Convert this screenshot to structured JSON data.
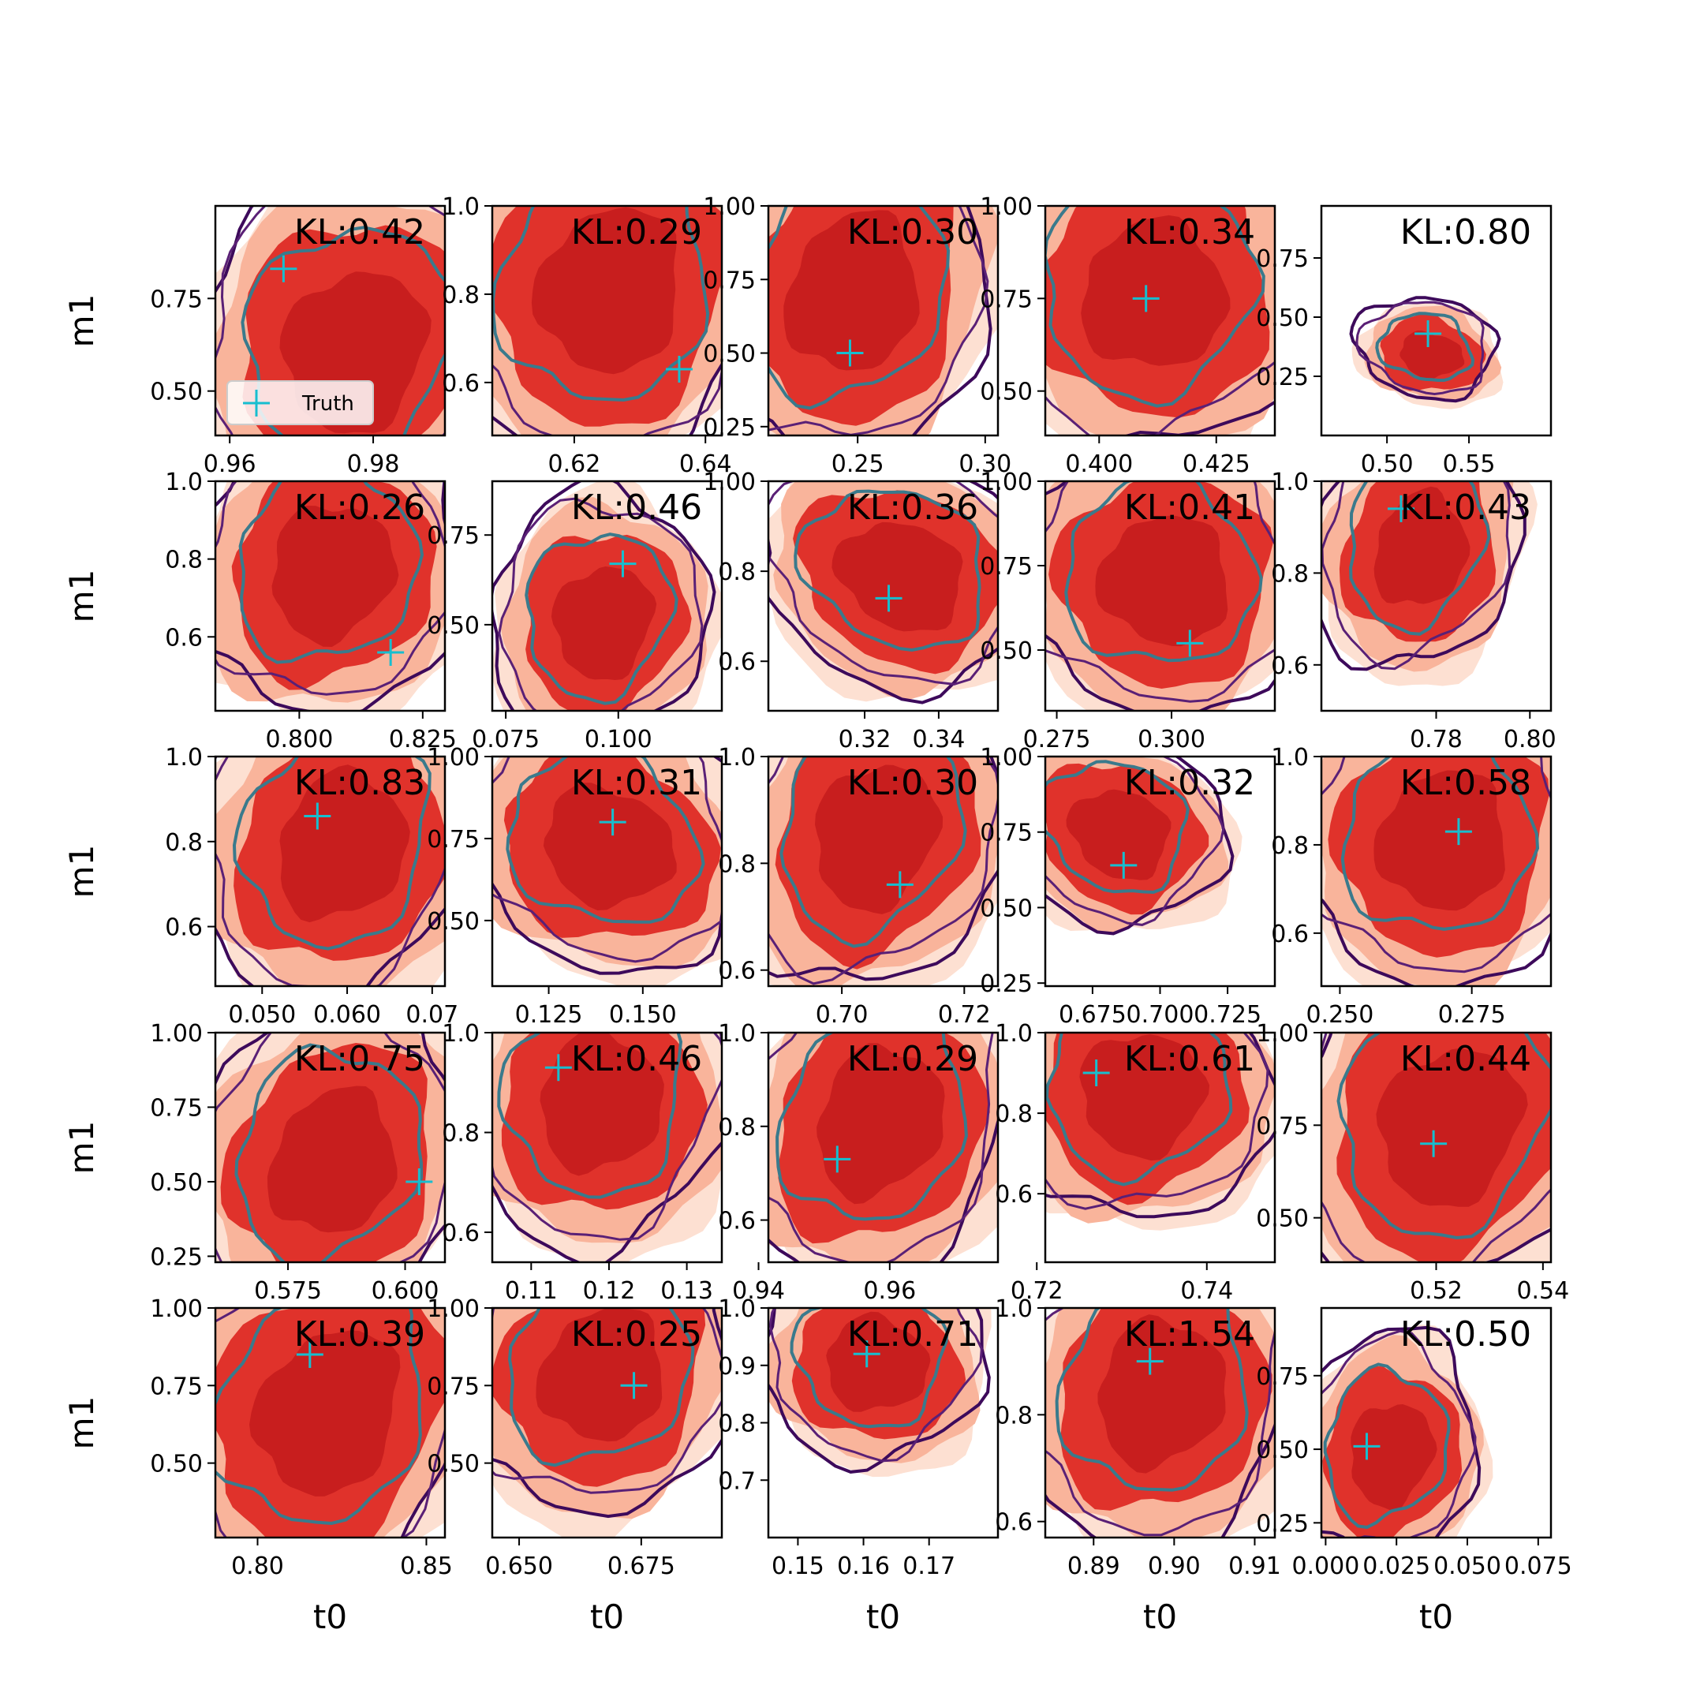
{
  "chart_data": {
    "type": "grid-of-2d-posterior-contour-plots",
    "rows": 5,
    "cols": 5,
    "xlabel": "t0",
    "ylabel": "m1",
    "legend": {
      "entry": "Truth",
      "marker": "+",
      "color": "#17becf",
      "placement": "lower-left of first panel"
    },
    "colors": {
      "contour_fill": [
        "#fde0d2",
        "#f9b49b",
        "#e0322b",
        "#c81e1e"
      ],
      "contour_lines": [
        "#3d0a5b",
        "#5a2076",
        "#3a7a8c"
      ],
      "truth_marker": "#17becf"
    },
    "panels": [
      {
        "kl": "KL:0.42",
        "xlim": [
          0.958,
          0.99
        ],
        "ylim": [
          0.38,
          1.0
        ],
        "xticks": [
          [
            0.96,
            "0.96"
          ],
          [
            0.98,
            "0.98"
          ]
        ],
        "yticks": [
          [
            0.5,
            "0.50"
          ],
          [
            0.75,
            "0.75"
          ]
        ],
        "truth": [
          0.9675,
          0.83
        ],
        "center": [
          0.977,
          0.62
        ],
        "scale": [
          0.02,
          0.35
        ],
        "rot": -35
      },
      {
        "kl": "KL:0.29",
        "xlim": [
          0.6075,
          0.6425
        ],
        "ylim": [
          0.48,
          1.0
        ],
        "xticks": [
          [
            0.62,
            "0.62"
          ],
          [
            0.64,
            "0.64"
          ]
        ],
        "yticks": [
          [
            0.6,
            "0.6"
          ],
          [
            0.8,
            "0.8"
          ],
          [
            1.0,
            "1.0"
          ]
        ],
        "truth": [
          0.636,
          0.63
        ],
        "center": [
          0.625,
          0.82
        ],
        "scale": [
          0.02,
          0.33
        ],
        "rot": -38
      },
      {
        "kl": "KL:0.30",
        "xlim": [
          0.215,
          0.305
        ],
        "ylim": [
          0.22,
          1.0
        ],
        "xticks": [
          [
            0.25,
            "0.25"
          ],
          [
            0.3,
            "0.30"
          ]
        ],
        "yticks": [
          [
            0.25,
            "0.25"
          ],
          [
            0.5,
            "0.50"
          ],
          [
            0.75,
            "0.75"
          ],
          [
            1.0,
            "1.00"
          ]
        ],
        "truth": [
          0.247,
          0.5
        ],
        "center": [
          0.247,
          0.72
        ],
        "scale": [
          0.05,
          0.45
        ],
        "rot": -38
      },
      {
        "kl": "KL:0.34",
        "xlim": [
          0.3885,
          0.4375
        ],
        "ylim": [
          0.38,
          1.0
        ],
        "xticks": [
          [
            0.4,
            "0.400"
          ],
          [
            0.425,
            "0.425"
          ]
        ],
        "yticks": [
          [
            0.5,
            "0.50"
          ],
          [
            0.75,
            "0.75"
          ],
          [
            1.0,
            "1.00"
          ]
        ],
        "truth": [
          0.41,
          0.75
        ],
        "center": [
          0.411,
          0.77
        ],
        "scale": [
          0.025,
          0.4
        ],
        "rot": -30
      },
      {
        "kl": "KL:0.80",
        "xlim": [
          0.46,
          0.6
        ],
        "ylim": [
          0.0,
          0.97
        ],
        "xticks": [
          [
            0.5,
            "0.50"
          ],
          [
            0.55,
            "0.55"
          ]
        ],
        "yticks": [
          [
            0.25,
            "0.25"
          ],
          [
            0.5,
            "0.50"
          ],
          [
            0.75,
            "0.75"
          ]
        ],
        "truth": [
          0.525,
          0.43
        ],
        "center": [
          0.525,
          0.36
        ],
        "scale": [
          0.04,
          0.15
        ],
        "rot": -45
      },
      {
        "kl": "KL:0.26",
        "xlim": [
          0.783,
          0.8295
        ],
        "ylim": [
          0.41,
          1.0
        ],
        "xticks": [
          [
            0.8,
            "0.800"
          ],
          [
            0.825,
            "0.825"
          ]
        ],
        "yticks": [
          [
            0.6,
            "0.6"
          ],
          [
            0.8,
            "0.8"
          ],
          [
            1.0,
            "1.0"
          ]
        ],
        "truth": [
          0.8185,
          0.56
        ],
        "center": [
          0.806,
          0.78
        ],
        "scale": [
          0.022,
          0.32
        ],
        "rot": -35
      },
      {
        "kl": "KL:0.46",
        "xlim": [
          0.072,
          0.123
        ],
        "ylim": [
          0.26,
          0.9
        ],
        "xticks": [
          [
            0.075,
            "0.075"
          ],
          [
            0.1,
            "0.100"
          ]
        ],
        "yticks": [
          [
            0.5,
            "0.50"
          ],
          [
            0.75,
            "0.75"
          ]
        ],
        "truth": [
          0.101,
          0.67
        ],
        "center": [
          0.096,
          0.52
        ],
        "scale": [
          0.02,
          0.28
        ],
        "rot": -40
      },
      {
        "kl": "KL:0.36",
        "xlim": [
          0.294,
          0.356
        ],
        "ylim": [
          0.49,
          1.0
        ],
        "xticks": [
          [
            0.32,
            "0.32"
          ],
          [
            0.34,
            "0.34"
          ]
        ],
        "yticks": [
          [
            0.6,
            "0.6"
          ],
          [
            0.8,
            "0.8"
          ],
          [
            1.0,
            "1.00"
          ]
        ],
        "truth": [
          0.3265,
          0.74
        ],
        "center": [
          0.329,
          0.8
        ],
        "scale": [
          0.022,
          0.3
        ],
        "rot": -30
      },
      {
        "kl": "KL:0.41",
        "xlim": [
          0.2725,
          0.3225
        ],
        "ylim": [
          0.32,
          1.0
        ],
        "xticks": [
          [
            0.275,
            "0.275"
          ],
          [
            0.3,
            "0.300"
          ]
        ],
        "yticks": [
          [
            0.5,
            "0.50"
          ],
          [
            0.75,
            "0.75"
          ],
          [
            1.0,
            "1.00"
          ]
        ],
        "truth": [
          0.304,
          0.52
        ],
        "center": [
          0.298,
          0.72
        ],
        "scale": [
          0.022,
          0.4
        ],
        "rot": -30
      },
      {
        "kl": "KL:0.43",
        "xlim": [
          0.7555,
          0.8045
        ],
        "ylim": [
          0.5,
          1.0
        ],
        "xticks": [
          [
            0.78,
            "0.78"
          ],
          [
            0.8,
            "0.80"
          ]
        ],
        "yticks": [
          [
            0.6,
            "0.6"
          ],
          [
            0.8,
            "0.8"
          ],
          [
            1.0,
            "1.0"
          ]
        ],
        "truth": [
          0.7725,
          0.94
        ],
        "center": [
          0.776,
          0.86
        ],
        "scale": [
          0.02,
          0.2
        ],
        "rot": -40
      },
      {
        "kl": "KL:0.83",
        "xlim": [
          0.0445,
          0.0715
        ],
        "ylim": [
          0.46,
          1.0
        ],
        "xticks": [
          [
            0.05,
            "0.050"
          ],
          [
            0.06,
            "0.060"
          ],
          [
            0.07,
            "0.07"
          ]
        ],
        "yticks": [
          [
            0.6,
            "0.6"
          ],
          [
            0.8,
            "0.8"
          ],
          [
            1.0,
            "1.0"
          ]
        ],
        "truth": [
          0.0565,
          0.86
        ],
        "center": [
          0.059,
          0.8
        ],
        "scale": [
          0.014,
          0.3
        ],
        "rot": -32
      },
      {
        "kl": "KL:0.31",
        "xlim": [
          0.11,
          0.171
        ],
        "ylim": [
          0.3,
          1.0
        ],
        "xticks": [
          [
            0.125,
            "0.125"
          ],
          [
            0.15,
            "0.150"
          ]
        ],
        "yticks": [
          [
            0.5,
            "0.50"
          ],
          [
            0.75,
            "0.75"
          ],
          [
            1.0,
            "1.00"
          ]
        ],
        "truth": [
          0.142,
          0.8
        ],
        "center": [
          0.14,
          0.74
        ],
        "scale": [
          0.024,
          0.42
        ],
        "rot": -28
      },
      {
        "kl": "KL:0.30",
        "xlim": [
          0.688,
          0.7255
        ],
        "ylim": [
          0.57,
          1.0
        ],
        "xticks": [
          [
            0.7,
            "0.70"
          ],
          [
            0.72,
            "0.72"
          ]
        ],
        "yticks": [
          [
            0.6,
            "0.6"
          ],
          [
            0.8,
            "0.8"
          ],
          [
            1.0,
            "1.0"
          ]
        ],
        "truth": [
          0.7095,
          0.76
        ],
        "center": [
          0.705,
          0.86
        ],
        "scale": [
          0.02,
          0.22
        ],
        "rot": -35
      },
      {
        "kl": "KL:0.32",
        "xlim": [
          0.6575,
          0.7425
        ],
        "ylim": [
          0.24,
          1.0
        ],
        "xticks": [
          [
            0.675,
            "0.675"
          ],
          [
            0.7,
            "0.700"
          ],
          [
            0.725,
            "0.725"
          ]
        ],
        "yticks": [
          [
            0.25,
            "0.25"
          ],
          [
            0.5,
            "0.50"
          ],
          [
            0.75,
            "0.75"
          ],
          [
            1.0,
            "1.00"
          ]
        ],
        "truth": [
          0.6865,
          0.64
        ],
        "center": [
          0.684,
          0.76
        ],
        "scale": [
          0.025,
          0.35
        ],
        "rot": -28
      },
      {
        "kl": "KL:0.58",
        "xlim": [
          0.2465,
          0.29
        ],
        "ylim": [
          0.48,
          1.0
        ],
        "xticks": [
          [
            0.25,
            "0.250"
          ],
          [
            0.275,
            "0.275"
          ]
        ],
        "yticks": [
          [
            0.6,
            "0.6"
          ],
          [
            0.8,
            "0.8"
          ],
          [
            1.0,
            "1.0"
          ]
        ],
        "truth": [
          0.2725,
          0.83
        ],
        "center": [
          0.269,
          0.82
        ],
        "scale": [
          0.025,
          0.25
        ],
        "rot": -38
      },
      {
        "kl": "KL:0.75",
        "xlim": [
          0.5595,
          0.6085
        ],
        "ylim": [
          0.23,
          1.0
        ],
        "xticks": [
          [
            0.575,
            "0.575"
          ],
          [
            0.6,
            "0.600"
          ]
        ],
        "yticks": [
          [
            0.25,
            "0.25"
          ],
          [
            0.5,
            "0.50"
          ],
          [
            0.75,
            "0.75"
          ],
          [
            1.0,
            "1.00"
          ]
        ],
        "truth": [
          0.603,
          0.5
        ],
        "center": [
          0.584,
          0.58
        ],
        "scale": [
          0.025,
          0.42
        ],
        "rot": -32
      },
      {
        "kl": "KL:0.46",
        "xlim": [
          0.105,
          0.1345
        ],
        "ylim": [
          0.54,
          1.0
        ],
        "xticks": [
          [
            0.11,
            "0.11"
          ],
          [
            0.12,
            "0.12"
          ],
          [
            0.13,
            "0.13"
          ]
        ],
        "yticks": [
          [
            0.6,
            "0.6"
          ],
          [
            0.8,
            "0.8"
          ],
          [
            1.0,
            "1.0"
          ]
        ],
        "truth": [
          0.1135,
          0.93
        ],
        "center": [
          0.1185,
          0.87
        ],
        "scale": [
          0.016,
          0.22
        ],
        "rot": -45
      },
      {
        "kl": "KL:0.29",
        "xlim": [
          0.9415,
          0.9765
        ],
        "ylim": [
          0.51,
          1.0
        ],
        "xticks": [
          [
            0.94,
            "0.94"
          ],
          [
            0.96,
            "0.96"
          ]
        ],
        "yticks": [
          [
            0.6,
            "0.6"
          ],
          [
            0.8,
            "0.8"
          ],
          [
            1.0,
            "1.0"
          ]
        ],
        "truth": [
          0.952,
          0.73
        ],
        "center": [
          0.958,
          0.82
        ],
        "scale": [
          0.019,
          0.26
        ],
        "rot": -32
      },
      {
        "kl": "KL:0.61",
        "xlim": [
          0.721,
          0.748
        ],
        "ylim": [
          0.43,
          1.0
        ],
        "xticks": [
          [
            0.72,
            "0.72"
          ],
          [
            0.74,
            "0.74"
          ]
        ],
        "yticks": [
          [
            0.6,
            "0.6"
          ],
          [
            0.8,
            "0.8"
          ],
          [
            1.0,
            "1.0"
          ]
        ],
        "truth": [
          0.727,
          0.9
        ],
        "center": [
          0.732,
          0.86
        ],
        "scale": [
          0.015,
          0.24
        ],
        "rot": -40
      },
      {
        "kl": "KL:0.44",
        "xlim": [
          0.4985,
          0.5415
        ],
        "ylim": [
          0.38,
          1.0
        ],
        "xticks": [
          [
            0.52,
            "0.52"
          ],
          [
            0.54,
            "0.54"
          ]
        ],
        "yticks": [
          [
            0.5,
            "0.50"
          ],
          [
            0.75,
            "0.75"
          ],
          [
            1.0,
            "1.00"
          ]
        ],
        "truth": [
          0.5195,
          0.7
        ],
        "center": [
          0.522,
          0.76
        ],
        "scale": [
          0.024,
          0.38
        ],
        "rot": -28
      },
      {
        "kl": "KL:0.39",
        "xlim": [
          0.7875,
          0.8555
        ],
        "ylim": [
          0.26,
          1.0
        ],
        "xticks": [
          [
            0.8,
            "0.80"
          ],
          [
            0.85,
            "0.85"
          ]
        ],
        "yticks": [
          [
            0.5,
            "0.50"
          ],
          [
            0.75,
            "0.75"
          ],
          [
            1.0,
            "1.00"
          ]
        ],
        "truth": [
          0.8155,
          0.85
        ],
        "center": [
          0.82,
          0.68
        ],
        "scale": [
          0.04,
          0.45
        ],
        "rot": -28
      },
      {
        "kl": "KL:0.25",
        "xlim": [
          0.6445,
          0.6915
        ],
        "ylim": [
          0.26,
          1.0
        ],
        "xticks": [
          [
            0.65,
            "0.650"
          ],
          [
            0.675,
            "0.675"
          ]
        ],
        "yticks": [
          [
            0.5,
            "0.50"
          ],
          [
            0.75,
            "0.75"
          ],
          [
            1.0,
            "1.00"
          ]
        ],
        "truth": [
          0.6735,
          0.75
        ],
        "center": [
          0.6665,
          0.8
        ],
        "scale": [
          0.022,
          0.4
        ],
        "rot": -25
      },
      {
        "kl": "KL:0.71",
        "xlim": [
          0.1455,
          0.1805
        ],
        "ylim": [
          0.6,
          1.0
        ],
        "xticks": [
          [
            0.15,
            "0.15"
          ],
          [
            0.16,
            "0.16"
          ],
          [
            0.17,
            "0.17"
          ]
        ],
        "yticks": [
          [
            0.7,
            "0.7"
          ],
          [
            0.8,
            "0.8"
          ],
          [
            0.9,
            "0.9"
          ],
          [
            1.0,
            "1.0"
          ]
        ],
        "truth": [
          0.1605,
          0.92
        ],
        "center": [
          0.1615,
          0.91
        ],
        "scale": [
          0.016,
          0.13
        ],
        "rot": -45
      },
      {
        "kl": "KL:1.54",
        "xlim": [
          0.884,
          0.9125
        ],
        "ylim": [
          0.57,
          1.0
        ],
        "xticks": [
          [
            0.89,
            "0.89"
          ],
          [
            0.9,
            "0.90"
          ],
          [
            0.91,
            "0.91"
          ]
        ],
        "yticks": [
          [
            0.6,
            "0.6"
          ],
          [
            0.8,
            "0.8"
          ],
          [
            1.0,
            "1.0"
          ]
        ],
        "truth": [
          0.897,
          0.9
        ],
        "center": [
          0.898,
          0.85
        ],
        "scale": [
          0.016,
          0.22
        ],
        "rot": -38
      },
      {
        "kl": "KL:0.50",
        "xlim": [
          -0.0015,
          0.0795
        ],
        "ylim": [
          0.2,
          0.98
        ],
        "xticks": [
          [
            0.0,
            "0.000"
          ],
          [
            0.025,
            "0.025"
          ],
          [
            0.05,
            "0.050"
          ],
          [
            0.075,
            "0.075"
          ]
        ],
        "yticks": [
          [
            0.25,
            "0.25"
          ],
          [
            0.5,
            "0.50"
          ],
          [
            0.75,
            "0.75"
          ]
        ],
        "truth": [
          0.0145,
          0.51
        ],
        "center": [
          0.022,
          0.5
        ],
        "scale": [
          0.03,
          0.28
        ],
        "rot": -42
      }
    ]
  }
}
